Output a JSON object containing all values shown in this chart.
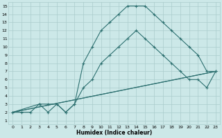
{
  "xlabel": "Humidex (Indice chaleur)",
  "bg_color": "#cce8e8",
  "grid_color": "#aacccc",
  "line_color": "#2d7070",
  "xlim": [
    -0.5,
    23.5
  ],
  "ylim": [
    0.5,
    15.5
  ],
  "xticks": [
    0,
    1,
    2,
    3,
    4,
    5,
    6,
    7,
    8,
    9,
    10,
    11,
    12,
    13,
    14,
    15,
    16,
    17,
    18,
    19,
    20,
    21,
    22,
    23
  ],
  "yticks": [
    1,
    2,
    3,
    4,
    5,
    6,
    7,
    8,
    9,
    10,
    11,
    12,
    13,
    14,
    15
  ],
  "line1_x": [
    0,
    1,
    2,
    3,
    4,
    5,
    6,
    7,
    8,
    9,
    10,
    11,
    12,
    13,
    14,
    15,
    16,
    17,
    18,
    19,
    20,
    21,
    22,
    23
  ],
  "line1_y": [
    2,
    2,
    2,
    3,
    2,
    3,
    2,
    3,
    8,
    10,
    12,
    13,
    14,
    15,
    15,
    15,
    14,
    13,
    12,
    11,
    10,
    9,
    7,
    7
  ],
  "line2_x": [
    0,
    3,
    4,
    5,
    6,
    7,
    8,
    9,
    10,
    11,
    12,
    13,
    14,
    15,
    16,
    17,
    18,
    19,
    20,
    21,
    22,
    23
  ],
  "line2_y": [
    2,
    3,
    3,
    3,
    2,
    3,
    5,
    6,
    8,
    9,
    10,
    11,
    12,
    11,
    10,
    9,
    8,
    7,
    6,
    6,
    5,
    7
  ],
  "line3_x": [
    0,
    23
  ],
  "line3_y": [
    2,
    7
  ],
  "line4_x": [
    0,
    23
  ],
  "line4_y": [
    2,
    7
  ]
}
